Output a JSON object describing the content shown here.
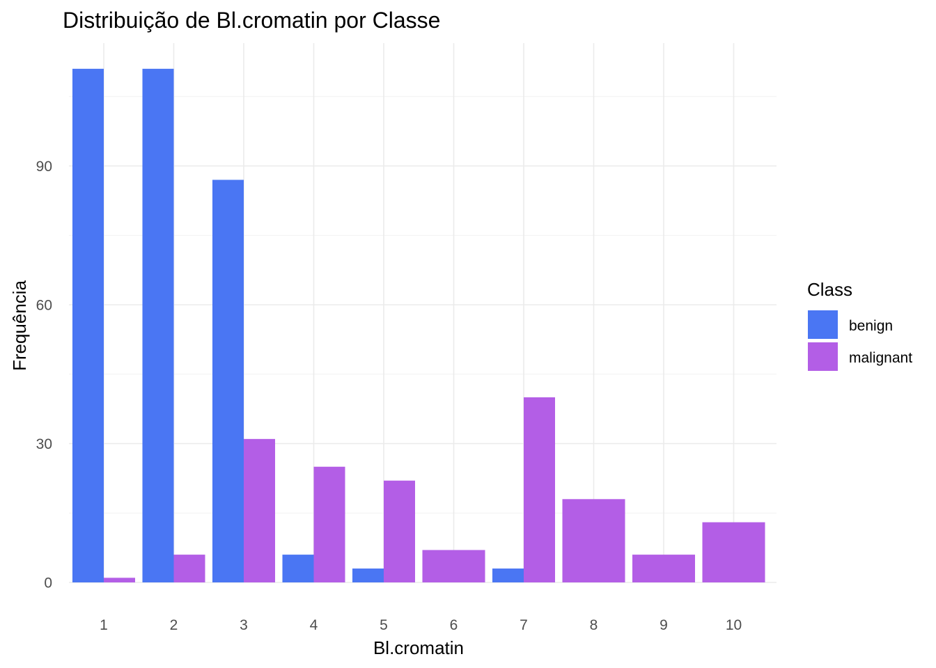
{
  "chart_data": {
    "type": "bar",
    "title": "Distribuição de Bl.cromatin por Classe",
    "xlabel": "Bl.cromatin",
    "ylabel": "Frequência",
    "categories": [
      "1",
      "2",
      "3",
      "4",
      "5",
      "6",
      "7",
      "8",
      "9",
      "10"
    ],
    "series": [
      {
        "name": "benign",
        "color": "#4a76f3",
        "values": [
          111,
          111,
          87,
          6,
          3,
          0,
          3,
          0,
          0,
          0
        ]
      },
      {
        "name": "malignant",
        "color": "#b35ee6",
        "values": [
          1,
          6,
          31,
          25,
          22,
          7,
          40,
          18,
          6,
          13
        ]
      }
    ],
    "yticks": [
      0,
      30,
      60,
      90
    ],
    "ylim": [
      0,
      111
    ],
    "grid": true,
    "legend": {
      "title": "Class",
      "position": "right"
    }
  }
}
